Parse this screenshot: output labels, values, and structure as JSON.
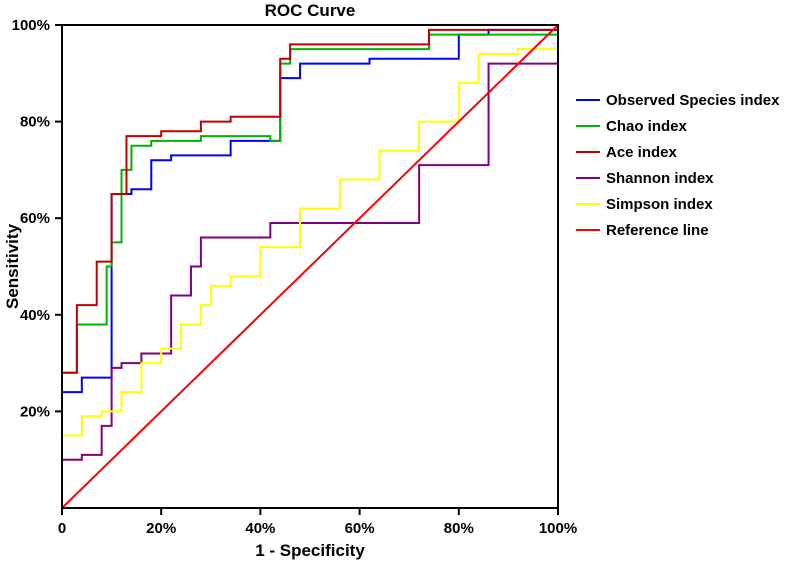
{
  "chart": {
    "type": "line",
    "title": "ROC Curve",
    "title_fontsize": 17,
    "xlabel": "1 - Specificity",
    "ylabel": "Sensitivity",
    "label_fontsize": 17,
    "tick_fontsize": 15,
    "background_color": "#ffffff",
    "plot_border_color": "#000000",
    "plot_border_width": 2,
    "xlim": [
      0,
      100
    ],
    "ylim": [
      0,
      100
    ],
    "xticks": [
      0,
      20,
      40,
      60,
      80,
      100
    ],
    "yticks": [
      20,
      40,
      60,
      80,
      100
    ],
    "xtick_labels": [
      "0",
      "20%",
      "40%",
      "60%",
      "80%",
      "100%"
    ],
    "ytick_labels": [
      "20%",
      "40%",
      "60%",
      "80%",
      "100%"
    ],
    "line_width": 2,
    "legend_position": "right",
    "series": [
      {
        "name": "Observed Species index",
        "color": "#0000ff",
        "points": [
          [
            0,
            24
          ],
          [
            4,
            24
          ],
          [
            4,
            27
          ],
          [
            10,
            27
          ],
          [
            10,
            65
          ],
          [
            14,
            65
          ],
          [
            14,
            66
          ],
          [
            18,
            66
          ],
          [
            18,
            72
          ],
          [
            22,
            72
          ],
          [
            22,
            73
          ],
          [
            26,
            73
          ],
          [
            26,
            73
          ],
          [
            34,
            73
          ],
          [
            34,
            76
          ],
          [
            38,
            76
          ],
          [
            38,
            76
          ],
          [
            44,
            76
          ],
          [
            44,
            89
          ],
          [
            48,
            89
          ],
          [
            48,
            92
          ],
          [
            52,
            92
          ],
          [
            52,
            92
          ],
          [
            62,
            92
          ],
          [
            62,
            93
          ],
          [
            68,
            93
          ],
          [
            68,
            93
          ],
          [
            80,
            93
          ],
          [
            80,
            98
          ],
          [
            86,
            98
          ],
          [
            86,
            99
          ],
          [
            100,
            99
          ]
        ]
      },
      {
        "name": "Chao index",
        "color": "#00b300",
        "points": [
          [
            0,
            28
          ],
          [
            3,
            28
          ],
          [
            3,
            38
          ],
          [
            9,
            38
          ],
          [
            9,
            50
          ],
          [
            10,
            50
          ],
          [
            10,
            55
          ],
          [
            12,
            55
          ],
          [
            12,
            70
          ],
          [
            14,
            70
          ],
          [
            14,
            75
          ],
          [
            18,
            75
          ],
          [
            18,
            76
          ],
          [
            28,
            76
          ],
          [
            28,
            77
          ],
          [
            34,
            77
          ],
          [
            34,
            77
          ],
          [
            42,
            77
          ],
          [
            42,
            76
          ],
          [
            44,
            76
          ],
          [
            44,
            92
          ],
          [
            46,
            92
          ],
          [
            46,
            95
          ],
          [
            56,
            95
          ],
          [
            56,
            95
          ],
          [
            64,
            95
          ],
          [
            64,
            95
          ],
          [
            74,
            95
          ],
          [
            74,
            98
          ],
          [
            84,
            98
          ],
          [
            84,
            98
          ],
          [
            100,
            98
          ]
        ]
      },
      {
        "name": "Ace index",
        "color": "#c00000",
        "points": [
          [
            0,
            28
          ],
          [
            3,
            28
          ],
          [
            3,
            42
          ],
          [
            7,
            42
          ],
          [
            7,
            51
          ],
          [
            10,
            51
          ],
          [
            10,
            65
          ],
          [
            13,
            65
          ],
          [
            13,
            77
          ],
          [
            20,
            77
          ],
          [
            20,
            78
          ],
          [
            28,
            78
          ],
          [
            28,
            80
          ],
          [
            34,
            80
          ],
          [
            34,
            81
          ],
          [
            40,
            81
          ],
          [
            40,
            81
          ],
          [
            44,
            81
          ],
          [
            44,
            93
          ],
          [
            46,
            93
          ],
          [
            46,
            96
          ],
          [
            52,
            96
          ],
          [
            52,
            96
          ],
          [
            62,
            96
          ],
          [
            62,
            96
          ],
          [
            74,
            96
          ],
          [
            74,
            99
          ],
          [
            82,
            99
          ],
          [
            82,
            99
          ],
          [
            100,
            99
          ]
        ]
      },
      {
        "name": "Shannon index",
        "color": "#800080",
        "points": [
          [
            0,
            10
          ],
          [
            4,
            10
          ],
          [
            4,
            11
          ],
          [
            8,
            11
          ],
          [
            8,
            17
          ],
          [
            10,
            17
          ],
          [
            10,
            29
          ],
          [
            12,
            29
          ],
          [
            12,
            30
          ],
          [
            16,
            30
          ],
          [
            16,
            32
          ],
          [
            22,
            32
          ],
          [
            22,
            44
          ],
          [
            26,
            44
          ],
          [
            26,
            50
          ],
          [
            28,
            50
          ],
          [
            28,
            56
          ],
          [
            32,
            56
          ],
          [
            32,
            56
          ],
          [
            42,
            56
          ],
          [
            42,
            59
          ],
          [
            46,
            59
          ],
          [
            46,
            59
          ],
          [
            60,
            59
          ],
          [
            60,
            59
          ],
          [
            72,
            59
          ],
          [
            72,
            71
          ],
          [
            74,
            71
          ],
          [
            74,
            71
          ],
          [
            86,
            71
          ],
          [
            86,
            92
          ],
          [
            92,
            92
          ],
          [
            92,
            92
          ],
          [
            100,
            92
          ]
        ]
      },
      {
        "name": "Simpson index",
        "color": "#ffff00",
        "points": [
          [
            0,
            15
          ],
          [
            4,
            15
          ],
          [
            4,
            19
          ],
          [
            8,
            19
          ],
          [
            8,
            20
          ],
          [
            12,
            20
          ],
          [
            12,
            24
          ],
          [
            16,
            24
          ],
          [
            16,
            30
          ],
          [
            20,
            30
          ],
          [
            20,
            33
          ],
          [
            24,
            33
          ],
          [
            24,
            38
          ],
          [
            28,
            38
          ],
          [
            28,
            42
          ],
          [
            30,
            42
          ],
          [
            30,
            46
          ],
          [
            34,
            46
          ],
          [
            34,
            48
          ],
          [
            40,
            48
          ],
          [
            40,
            54
          ],
          [
            48,
            54
          ],
          [
            48,
            62
          ],
          [
            56,
            62
          ],
          [
            56,
            68
          ],
          [
            64,
            68
          ],
          [
            64,
            74
          ],
          [
            72,
            74
          ],
          [
            72,
            80
          ],
          [
            80,
            80
          ],
          [
            80,
            88
          ],
          [
            84,
            88
          ],
          [
            84,
            94
          ],
          [
            92,
            94
          ],
          [
            92,
            95
          ],
          [
            100,
            95
          ]
        ]
      },
      {
        "name": "Reference line",
        "color": "#ff0000",
        "points": [
          [
            0,
            0
          ],
          [
            100,
            100
          ]
        ]
      }
    ]
  }
}
